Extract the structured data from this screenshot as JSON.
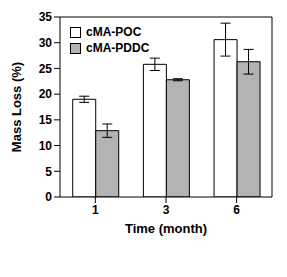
{
  "chart_data": {
    "type": "bar",
    "categories": [
      "1",
      "3",
      "6"
    ],
    "series": [
      {
        "name": "cMA-POC",
        "color": "#ffffff",
        "values": [
          19.0,
          25.8,
          30.6
        ],
        "errors": [
          0.6,
          1.2,
          3.2
        ]
      },
      {
        "name": "cMA-PDDC",
        "color": "#b3b3b3",
        "values": [
          12.9,
          22.8,
          26.3
        ],
        "errors": [
          1.3,
          0.2,
          2.4
        ]
      }
    ],
    "x_label": "Time (month)",
    "y_label": "Mass Loss (%)",
    "ylim": [
      0,
      35
    ],
    "yticks": [
      0,
      5,
      10,
      15,
      20,
      25,
      30,
      35
    ],
    "legend": "upper left",
    "grid": false
  }
}
